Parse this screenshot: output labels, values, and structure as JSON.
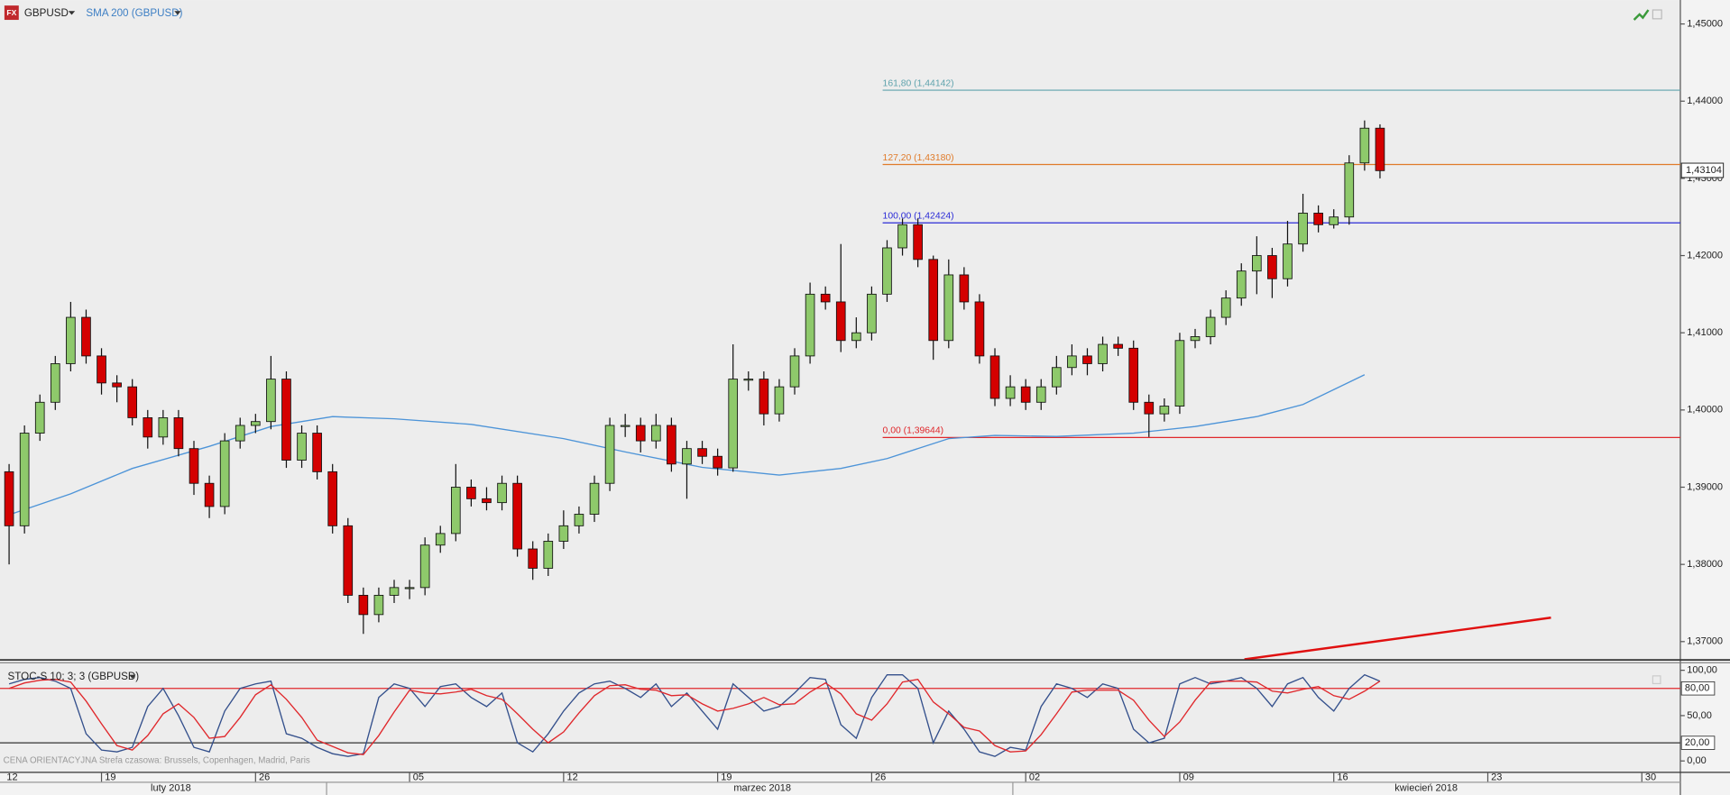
{
  "chart_data": [
    {
      "type": "candlestick",
      "symbol": "GBPUSD",
      "x": [
        4,
        5,
        6,
        7,
        8,
        9,
        10,
        11,
        12,
        13,
        14,
        15,
        16,
        17,
        18,
        19,
        20,
        21,
        22,
        23,
        24,
        25,
        26,
        27,
        28,
        29,
        30,
        31,
        32,
        33,
        34,
        35,
        36,
        37,
        38,
        39,
        40,
        41,
        42,
        43,
        44,
        45,
        46,
        47,
        48,
        49,
        50,
        51,
        52,
        53,
        54,
        55,
        56,
        57,
        58,
        59,
        60,
        61,
        62,
        63,
        64,
        65,
        66,
        67,
        68,
        69,
        70,
        71,
        72,
        73,
        74,
        75,
        76,
        77,
        78,
        79,
        80,
        81,
        82,
        83,
        84,
        85,
        86,
        87,
        88,
        89,
        90,
        91,
        92,
        93
      ],
      "open": [
        1.392,
        1.385,
        1.397,
        1.401,
        1.406,
        1.412,
        1.407,
        1.4035,
        1.403,
        1.399,
        1.3965,
        1.399,
        1.395,
        1.3905,
        1.3875,
        1.396,
        1.398,
        1.3985,
        1.404,
        1.3935,
        1.397,
        1.392,
        1.385,
        1.376,
        1.3735,
        1.376,
        1.377,
        1.377,
        1.3825,
        1.384,
        1.39,
        1.3885,
        1.388,
        1.3905,
        1.382,
        1.3795,
        1.383,
        1.385,
        1.3865,
        1.3905,
        1.398,
        1.398,
        1.396,
        1.398,
        1.393,
        1.395,
        1.394,
        1.3925,
        1.404,
        1.404,
        1.3995,
        1.403,
        1.407,
        1.415,
        1.414,
        1.409,
        1.41,
        1.415,
        1.421,
        1.424,
        1.4195,
        1.409,
        1.4175,
        1.414,
        1.407,
        1.4015,
        1.403,
        1.401,
        1.403,
        1.4055,
        1.407,
        1.406,
        1.4085,
        1.408,
        1.401,
        1.3995,
        1.4005,
        1.409,
        1.4095,
        1.412,
        1.4145,
        1.418,
        1.42,
        1.417,
        1.4215,
        1.4255,
        1.424,
        1.425,
        1.432,
        1.4365
      ],
      "high": [
        1.393,
        1.398,
        1.402,
        1.407,
        1.414,
        1.413,
        1.408,
        1.4045,
        1.404,
        1.4,
        1.4,
        1.4,
        1.396,
        1.3915,
        1.397,
        1.399,
        1.3995,
        1.407,
        1.405,
        1.398,
        1.398,
        1.393,
        1.386,
        1.377,
        1.377,
        1.378,
        1.378,
        1.3835,
        1.385,
        1.393,
        1.391,
        1.39,
        1.3915,
        1.3915,
        1.383,
        1.384,
        1.387,
        1.3875,
        1.3915,
        1.399,
        1.3995,
        1.399,
        1.3995,
        1.399,
        1.396,
        1.396,
        1.395,
        1.4085,
        1.405,
        1.405,
        1.404,
        1.408,
        1.4165,
        1.416,
        1.4215,
        1.412,
        1.416,
        1.422,
        1.4248,
        1.4248,
        1.42,
        1.4195,
        1.4185,
        1.415,
        1.408,
        1.4045,
        1.404,
        1.404,
        1.407,
        1.4085,
        1.408,
        1.4095,
        1.4095,
        1.409,
        1.402,
        1.4015,
        1.41,
        1.4105,
        1.413,
        1.4155,
        1.419,
        1.4225,
        1.421,
        1.4245,
        1.428,
        1.4265,
        1.426,
        1.433,
        1.4375,
        1.437
      ],
      "low": [
        1.38,
        1.384,
        1.396,
        1.4,
        1.405,
        1.406,
        1.402,
        1.401,
        1.398,
        1.395,
        1.3955,
        1.394,
        1.389,
        1.386,
        1.3865,
        1.395,
        1.397,
        1.3975,
        1.3925,
        1.3925,
        1.391,
        1.384,
        1.375,
        1.371,
        1.3725,
        1.375,
        1.3755,
        1.376,
        1.3815,
        1.383,
        1.3875,
        1.387,
        1.387,
        1.381,
        1.378,
        1.3785,
        1.382,
        1.384,
        1.3855,
        1.3895,
        1.3965,
        1.3945,
        1.395,
        1.392,
        1.3885,
        1.393,
        1.3915,
        1.392,
        1.4025,
        1.398,
        1.3985,
        1.402,
        1.406,
        1.413,
        1.4075,
        1.408,
        1.409,
        1.414,
        1.42,
        1.4185,
        1.4065,
        1.408,
        1.413,
        1.406,
        1.4005,
        1.4005,
        1.4,
        1.4,
        1.402,
        1.4045,
        1.4045,
        1.405,
        1.407,
        1.4,
        1.3965,
        1.3985,
        1.3995,
        1.408,
        1.4085,
        1.411,
        1.4135,
        1.415,
        1.4145,
        1.416,
        1.4205,
        1.423,
        1.4235,
        1.424,
        1.431,
        1.43
      ],
      "close": [
        1.385,
        1.397,
        1.401,
        1.406,
        1.412,
        1.407,
        1.4035,
        1.403,
        1.399,
        1.3965,
        1.399,
        1.395,
        1.3905,
        1.3875,
        1.396,
        1.398,
        1.3985,
        1.404,
        1.3935,
        1.397,
        1.392,
        1.385,
        1.376,
        1.3735,
        1.376,
        1.377,
        1.377,
        1.3825,
        1.384,
        1.39,
        1.3885,
        1.388,
        1.3905,
        1.382,
        1.3795,
        1.383,
        1.385,
        1.3865,
        1.3905,
        1.398,
        1.398,
        1.396,
        1.398,
        1.393,
        1.395,
        1.394,
        1.3925,
        1.404,
        1.404,
        1.3995,
        1.403,
        1.407,
        1.415,
        1.414,
        1.409,
        1.41,
        1.415,
        1.421,
        1.424,
        1.4195,
        1.409,
        1.4175,
        1.414,
        1.407,
        1.4015,
        1.403,
        1.401,
        1.403,
        1.4055,
        1.407,
        1.406,
        1.4085,
        1.408,
        1.401,
        1.3995,
        1.4005,
        1.409,
        1.4095,
        1.412,
        1.4145,
        1.418,
        1.42,
        1.417,
        1.4215,
        1.4255,
        1.424,
        1.425,
        1.432,
        1.4365,
        1.431
      ],
      "up_color": "#8ec96b",
      "down_color": "#d40000",
      "sma": {
        "name": "SMA 200 (GBPUSD)",
        "color": "#4d94d8",
        "x": [
          4,
          8,
          12,
          17,
          21,
          25,
          29,
          34,
          40,
          44,
          49,
          54,
          58,
          61,
          65,
          68,
          72,
          77,
          81,
          85,
          88,
          92
        ],
        "values": [
          1.38643,
          1.38914,
          1.39243,
          1.39529,
          1.39786,
          1.39914,
          1.39886,
          1.39814,
          1.39629,
          1.39457,
          1.39257,
          1.39157,
          1.39243,
          1.39371,
          1.39629,
          1.39671,
          1.39657,
          1.397,
          1.39786,
          1.39914,
          1.40071,
          1.40457
        ]
      },
      "levels": [
        {
          "label": "161,80 (1,44142)",
          "value": 1.44142,
          "color": "#5fa3ad"
        },
        {
          "label": "127,20 (1,43180)",
          "value": 1.4318,
          "color": "#e07b2a"
        },
        {
          "label": "100,00 (1,42424)",
          "value": 1.42424,
          "color": "#2b2bd6"
        },
        {
          "label": "0,00 (1,39644)",
          "value": 1.39644,
          "color": "#e0282c"
        }
      ],
      "trendline": {
        "color": "#e01010",
        "x": [
          84.2,
          104.1
        ],
        "values": [
          1.3677,
          1.3731
        ]
      },
      "last_price": {
        "value": 1.43104,
        "label": "1,43104"
      },
      "xlim": [
        3.41,
        112.5
      ],
      "ylim": [
        1.3677,
        1.4531
      ],
      "yticks": [
        {
          "value": 1.37,
          "label": "1,37000"
        },
        {
          "value": 1.38,
          "label": "1,38000"
        },
        {
          "value": 1.39,
          "label": "1,39000"
        },
        {
          "value": 1.4,
          "label": "1,40000"
        },
        {
          "value": 1.41,
          "label": "1,41000"
        },
        {
          "value": 1.42,
          "label": "1,42000"
        },
        {
          "value": 1.43,
          "label": "1,43000"
        },
        {
          "value": 1.44,
          "label": "1,44000"
        },
        {
          "value": 1.45,
          "label": "1,45000"
        }
      ],
      "xticks": [
        {
          "value": 0,
          "label": "12"
        },
        {
          "value": 10,
          "label": "19"
        },
        {
          "value": 20,
          "label": "26"
        },
        {
          "value": 30,
          "label": "05"
        },
        {
          "value": 40,
          "label": "12"
        },
        {
          "value": 50,
          "label": "19"
        },
        {
          "value": 60,
          "label": "26"
        },
        {
          "value": 70,
          "label": "02"
        },
        {
          "value": 80,
          "label": "09"
        },
        {
          "value": 90,
          "label": "16"
        },
        {
          "value": 100,
          "label": "23"
        },
        {
          "value": 110,
          "label": "30"
        }
      ],
      "month_labels": [
        {
          "value": 14.5,
          "label": "luty 2018"
        },
        {
          "value": 52.9,
          "label": "marzec 2018"
        },
        {
          "value": 96,
          "label": "kwiecień 2018"
        }
      ]
    },
    {
      "type": "line",
      "title": "STOC-S 10; 3; 3 (GBPUSD)",
      "x": [
        4,
        5,
        6,
        7,
        8,
        9,
        10,
        11,
        12,
        13,
        14,
        15,
        16,
        17,
        18,
        19,
        20,
        21,
        22,
        23,
        24,
        25,
        26,
        27,
        28,
        29,
        30,
        31,
        32,
        33,
        34,
        35,
        36,
        37,
        38,
        39,
        40,
        41,
        42,
        43,
        44,
        45,
        46,
        47,
        48,
        49,
        50,
        51,
        52,
        53,
        54,
        55,
        56,
        57,
        58,
        59,
        60,
        61,
        62,
        63,
        64,
        65,
        66,
        67,
        68,
        69,
        70,
        71,
        72,
        73,
        74,
        75,
        76,
        77,
        78,
        79,
        80,
        81,
        82,
        83,
        84,
        85,
        86,
        87,
        88,
        89,
        90,
        91,
        92,
        93
      ],
      "series": [
        {
          "color": "#34508c",
          "values": [
            85,
            90,
            92,
            88,
            80,
            30,
            12,
            10,
            15,
            60,
            80,
            50,
            15,
            10,
            55,
            80,
            85,
            88,
            30,
            25,
            15,
            8,
            5,
            8,
            70,
            85,
            80,
            60,
            82,
            85,
            70,
            60,
            75,
            20,
            10,
            30,
            55,
            75,
            85,
            88,
            80,
            70,
            85,
            60,
            75,
            55,
            35,
            85,
            70,
            55,
            60,
            75,
            92,
            90,
            40,
            25,
            70,
            95,
            95,
            80,
            20,
            55,
            35,
            10,
            5,
            15,
            12,
            60,
            85,
            80,
            70,
            85,
            80,
            35,
            20,
            25,
            85,
            92,
            85,
            88,
            92,
            80,
            60,
            85,
            92,
            70,
            55,
            80,
            95,
            88
          ]
        },
        {
          "color": "#e0282c",
          "values": [
            80,
            86,
            89,
            90,
            87,
            66,
            41,
            17,
            12,
            28,
            52,
            63,
            48,
            25,
            27,
            48,
            73,
            84,
            68,
            48,
            23,
            16,
            9,
            7,
            28,
            54,
            78,
            75,
            74,
            76,
            79,
            72,
            68,
            52,
            35,
            20,
            32,
            53,
            72,
            83,
            84,
            79,
            78,
            72,
            73,
            63,
            55,
            58,
            63,
            70,
            62,
            63,
            76,
            86,
            74,
            52,
            45,
            63,
            87,
            90,
            65,
            52,
            37,
            33,
            17,
            10,
            11,
            29,
            52,
            76,
            78,
            78,
            78,
            67,
            45,
            27,
            43,
            67,
            87,
            88,
            88,
            87,
            77,
            75,
            79,
            82,
            72,
            68,
            77,
            88
          ]
        }
      ],
      "levels": [
        {
          "value": 80,
          "label": "80,00",
          "color": "#e0282c"
        },
        {
          "value": 20,
          "label": "20,00",
          "color": "#333333"
        }
      ],
      "ylim": [
        -12,
        108.4
      ],
      "yticks": [
        {
          "value": 100,
          "label": "100,00"
        },
        {
          "value": 50,
          "label": "50,00"
        },
        {
          "value": 0,
          "label": "0,00"
        }
      ]
    }
  ],
  "footer_note": "CENA ORIENTACYJNA   Strefa czasowa: Brussels, Copenhagen, Madrid, Paris"
}
